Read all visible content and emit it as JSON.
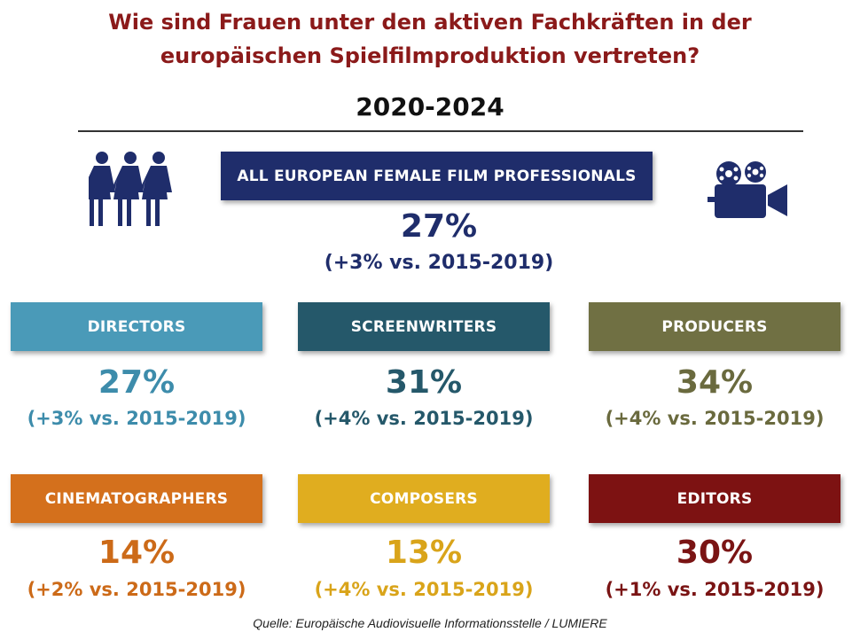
{
  "title_line1": "Wie sind Frauen unter den aktiven Fachkräften in der",
  "title_line2": "europäischen Spielfilmproduktion vertreten?",
  "period": "2020-2024",
  "overall": {
    "label": "ALL EUROPEAN FEMALE FILM PROFESSIONALS",
    "value": "27%",
    "change": "(+3% vs. 2015-2019)",
    "color": "#1f2d6b"
  },
  "icons": {
    "left": "three-women-icon",
    "right": "film-camera-icon"
  },
  "categories": [
    {
      "label": "DIRECTORS",
      "value": "27%",
      "change": "(+3% vs. 2015-2019)",
      "banner_color": "#4a9ab8",
      "text_color": "#3d8cab"
    },
    {
      "label": "SCREENWRITERS",
      "value": "31%",
      "change": "(+4% vs. 2015-2019)",
      "banner_color": "#25586a",
      "text_color": "#25586a"
    },
    {
      "label": "PRODUCERS",
      "value": "34%",
      "change": "(+4% vs. 2015-2019)",
      "banner_color": "#707043",
      "text_color": "#6a6a3e"
    },
    {
      "label": "CINEMATOGRAPHERS",
      "value": "14%",
      "change": "(+2% vs. 2015-2019)",
      "banner_color": "#d4701c",
      "text_color": "#cc6a18"
    },
    {
      "label": "COMPOSERS",
      "value": "13%",
      "change": "(+4% vs. 2015-2019)",
      "banner_color": "#e0ad1f",
      "text_color": "#d9a41a"
    },
    {
      "label": "EDITORS",
      "value": "30%",
      "change": "(+1% vs. 2015-2019)",
      "banner_color": "#7d1212",
      "text_color": "#7a1414"
    }
  ],
  "source": "Quelle: Europäische Audiovisuelle Informationsstelle / LUMIERE"
}
